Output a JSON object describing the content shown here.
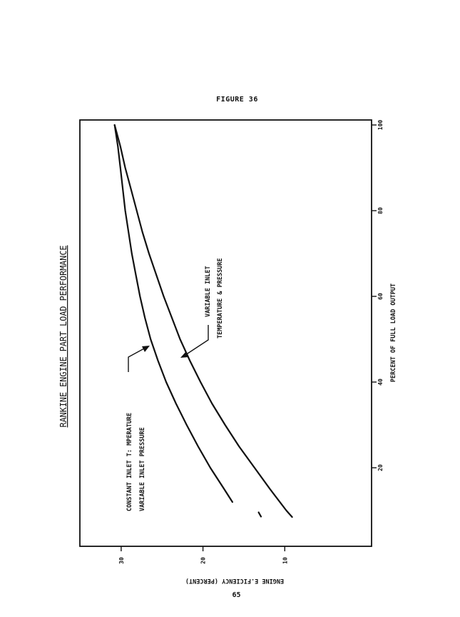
{
  "figure_label": "FIGURE 36",
  "page_number": "65",
  "chart_data": {
    "type": "line",
    "orientation": "rotated 90 degrees counter-clockwise",
    "title": "RANKINE ENGINE PART LOAD PERFORMANCE",
    "xlabel": "PERCENT OF FULL LOAD OUTPUT",
    "ylabel": "ENGINE E.FICIENCY (PERCENT)",
    "xlim": [
      0,
      100
    ],
    "ylim": [
      0,
      35
    ],
    "xticks": [
      20,
      40,
      60,
      80,
      100
    ],
    "yticks": [
      10,
      20,
      30
    ],
    "grid": false,
    "series": [
      {
        "label_lines": [
          "CONSTANT INLET T: MPERATURE",
          "VARIABLE INLET PRESSURE"
        ],
        "x": [
          100,
          95,
          90,
          85,
          80,
          75,
          70,
          65,
          60,
          55,
          50,
          45,
          40,
          35,
          30,
          25,
          20,
          15,
          12
        ],
        "y": [
          30.8,
          30.4,
          30.1,
          29.8,
          29.5,
          29.1,
          28.7,
          28.2,
          27.7,
          27.1,
          26.4,
          25.5,
          24.5,
          23.3,
          22.0,
          20.6,
          19.1,
          17.4,
          16.4
        ],
        "extra_segment": {
          "x": [
            8.6,
            9.6
          ],
          "y": [
            12.9,
            13.2
          ]
        }
      },
      {
        "label_lines": [
          "VARIABLE INLET",
          "TEMPERATURE & PRESSURE"
        ],
        "x": [
          100,
          95,
          90,
          85,
          80,
          75,
          70,
          65,
          60,
          55,
          50,
          45,
          40,
          35,
          30,
          25,
          20,
          15,
          10,
          8.5
        ],
        "y": [
          30.8,
          30.1,
          29.5,
          28.8,
          28.1,
          27.4,
          26.6,
          25.7,
          24.8,
          23.8,
          22.8,
          21.6,
          20.3,
          18.9,
          17.3,
          15.6,
          13.7,
          11.8,
          9.8,
          9.1
        ]
      }
    ]
  }
}
